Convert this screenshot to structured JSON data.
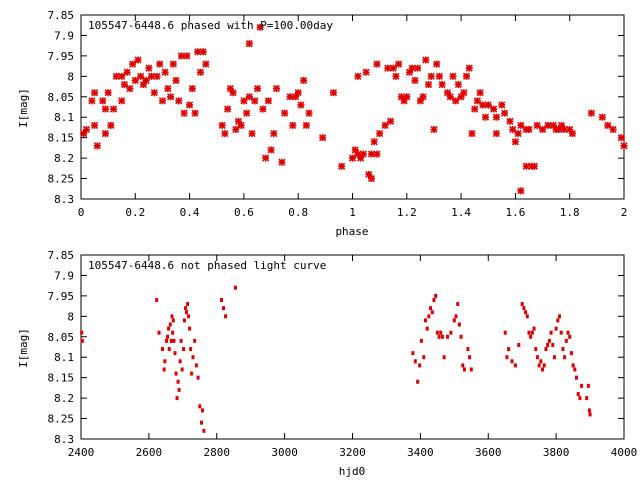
{
  "chart_data": [
    {
      "type": "scatter",
      "title": "105547-6448.6 phased with P=100.00day",
      "xlabel": "phase",
      "ylabel": "I[mag]",
      "xlim": [
        0,
        2
      ],
      "ylim": [
        7.85,
        8.3
      ],
      "y_inverted": true,
      "x_ticks": [
        "0",
        "0.2",
        "0.4",
        "0.6",
        "0.8",
        "1",
        "1.2",
        "1.4",
        "1.6",
        "1.8",
        "2"
      ],
      "y_ticks": [
        "7.85",
        "7.9",
        "7.95",
        "8",
        "8.05",
        "8.1",
        "8.15",
        "8.2",
        "8.25",
        "8.3"
      ],
      "marker_color": "#e00000",
      "marker": "large-cross",
      "points": [
        [
          0.01,
          8.14
        ],
        [
          0.02,
          8.13
        ],
        [
          0.04,
          8.06
        ],
        [
          0.05,
          8.12
        ],
        [
          0.05,
          8.04
        ],
        [
          0.06,
          8.17
        ],
        [
          0.08,
          8.06
        ],
        [
          0.09,
          8.08
        ],
        [
          0.09,
          8.14
        ],
        [
          0.1,
          8.04
        ],
        [
          0.11,
          8.12
        ],
        [
          0.12,
          8.08
        ],
        [
          0.13,
          8.0
        ],
        [
          0.15,
          8.0
        ],
        [
          0.15,
          8.06
        ],
        [
          0.16,
          8.02
        ],
        [
          0.17,
          7.99
        ],
        [
          0.18,
          8.03
        ],
        [
          0.19,
          7.97
        ],
        [
          0.2,
          8.01
        ],
        [
          0.21,
          7.96
        ],
        [
          0.22,
          8.0
        ],
        [
          0.23,
          8.02
        ],
        [
          0.24,
          8.01
        ],
        [
          0.25,
          7.98
        ],
        [
          0.26,
          8.0
        ],
        [
          0.27,
          8.04
        ],
        [
          0.28,
          8.0
        ],
        [
          0.29,
          7.97
        ],
        [
          0.3,
          8.06
        ],
        [
          0.31,
          7.99
        ],
        [
          0.32,
          8.03
        ],
        [
          0.33,
          8.05
        ],
        [
          0.34,
          7.97
        ],
        [
          0.35,
          8.01
        ],
        [
          0.36,
          8.06
        ],
        [
          0.37,
          7.95
        ],
        [
          0.38,
          8.09
        ],
        [
          0.39,
          7.95
        ],
        [
          0.4,
          8.07
        ],
        [
          0.41,
          8.03
        ],
        [
          0.42,
          8.09
        ],
        [
          0.43,
          7.94
        ],
        [
          0.44,
          7.99
        ],
        [
          0.45,
          7.94
        ],
        [
          0.46,
          7.97
        ],
        [
          0.52,
          8.12
        ],
        [
          0.53,
          8.14
        ],
        [
          0.54,
          8.08
        ],
        [
          0.55,
          8.03
        ],
        [
          0.56,
          8.04
        ],
        [
          0.57,
          8.13
        ],
        [
          0.58,
          8.11
        ],
        [
          0.59,
          8.12
        ],
        [
          0.6,
          8.06
        ],
        [
          0.61,
          8.09
        ],
        [
          0.62,
          7.92
        ],
        [
          0.62,
          8.05
        ],
        [
          0.63,
          8.14
        ],
        [
          0.64,
          8.06
        ],
        [
          0.65,
          8.03
        ],
        [
          0.66,
          7.88
        ],
        [
          0.67,
          8.08
        ],
        [
          0.68,
          8.2
        ],
        [
          0.69,
          8.06
        ],
        [
          0.7,
          8.18
        ],
        [
          0.71,
          8.14
        ],
        [
          0.72,
          8.03
        ],
        [
          0.74,
          8.21
        ],
        [
          0.75,
          8.09
        ],
        [
          0.77,
          8.05
        ],
        [
          0.78,
          8.12
        ],
        [
          0.79,
          8.05
        ],
        [
          0.8,
          8.04
        ],
        [
          0.81,
          8.07
        ],
        [
          0.82,
          8.01
        ],
        [
          0.83,
          8.12
        ],
        [
          0.84,
          8.09
        ],
        [
          0.89,
          8.15
        ],
        [
          0.93,
          8.04
        ],
        [
          0.96,
          8.22
        ],
        [
          1.0,
          8.2
        ],
        [
          1.01,
          8.18
        ],
        [
          1.02,
          8.19
        ],
        [
          1.02,
          8.0
        ],
        [
          1.03,
          8.2
        ],
        [
          1.04,
          8.19
        ],
        [
          1.05,
          7.99
        ],
        [
          1.06,
          8.24
        ],
        [
          1.07,
          8.19
        ],
        [
          1.07,
          8.25
        ],
        [
          1.08,
          8.16
        ],
        [
          1.09,
          8.19
        ],
        [
          1.09,
          7.97
        ],
        [
          1.1,
          8.14
        ],
        [
          1.12,
          8.12
        ],
        [
          1.13,
          7.98
        ],
        [
          1.14,
          8.11
        ],
        [
          1.15,
          7.98
        ],
        [
          1.16,
          8.0
        ],
        [
          1.17,
          7.97
        ],
        [
          1.18,
          8.05
        ],
        [
          1.19,
          8.06
        ],
        [
          1.2,
          8.05
        ],
        [
          1.21,
          7.99
        ],
        [
          1.22,
          7.98
        ],
        [
          1.23,
          8.01
        ],
        [
          1.24,
          7.98
        ],
        [
          1.25,
          8.06
        ],
        [
          1.26,
          8.05
        ],
        [
          1.27,
          7.96
        ],
        [
          1.28,
          8.02
        ],
        [
          1.29,
          8.0
        ],
        [
          1.3,
          8.13
        ],
        [
          1.31,
          7.97
        ],
        [
          1.32,
          8.0
        ],
        [
          1.33,
          8.02
        ],
        [
          1.35,
          8.04
        ],
        [
          1.36,
          8.05
        ],
        [
          1.37,
          8.0
        ],
        [
          1.38,
          8.06
        ],
        [
          1.39,
          8.02
        ],
        [
          1.4,
          8.05
        ],
        [
          1.41,
          8.04
        ],
        [
          1.42,
          8.0
        ],
        [
          1.43,
          7.98
        ],
        [
          1.44,
          8.14
        ],
        [
          1.45,
          8.08
        ],
        [
          1.46,
          8.06
        ],
        [
          1.47,
          8.04
        ],
        [
          1.48,
          8.07
        ],
        [
          1.49,
          8.1
        ],
        [
          1.5,
          8.07
        ],
        [
          1.52,
          8.08
        ],
        [
          1.53,
          8.1
        ],
        [
          1.53,
          8.14
        ],
        [
          1.55,
          8.07
        ],
        [
          1.56,
          8.09
        ],
        [
          1.58,
          8.11
        ],
        [
          1.59,
          8.13
        ],
        [
          1.6,
          8.16
        ],
        [
          1.61,
          8.14
        ],
        [
          1.62,
          8.12
        ],
        [
          1.62,
          8.28
        ],
        [
          1.64,
          8.13
        ],
        [
          1.64,
          8.22
        ],
        [
          1.65,
          8.13
        ],
        [
          1.66,
          8.22
        ],
        [
          1.67,
          8.22
        ],
        [
          1.68,
          8.12
        ],
        [
          1.7,
          8.13
        ],
        [
          1.72,
          8.12
        ],
        [
          1.74,
          8.12
        ],
        [
          1.75,
          8.13
        ],
        [
          1.76,
          8.13
        ],
        [
          1.77,
          8.12
        ],
        [
          1.78,
          8.13
        ],
        [
          1.8,
          8.13
        ],
        [
          1.81,
          8.14
        ],
        [
          1.88,
          8.09
        ],
        [
          1.92,
          8.1
        ],
        [
          1.94,
          8.12
        ],
        [
          1.96,
          8.13
        ],
        [
          1.99,
          8.15
        ],
        [
          2.0,
          8.17
        ]
      ]
    },
    {
      "type": "scatter",
      "title": "105547-6448.6 not phased light curve",
      "xlabel": "hjd0",
      "ylabel": "I[mag]",
      "xlim": [
        2400,
        4000
      ],
      "ylim": [
        7.85,
        8.3
      ],
      "y_inverted": true,
      "x_ticks": [
        "2400",
        "2600",
        "2800",
        "3000",
        "3200",
        "3400",
        "3600",
        "3800",
        "4000"
      ],
      "y_ticks": [
        "7.85",
        "7.9",
        "7.95",
        "8",
        "8.05",
        "8.1",
        "8.15",
        "8.2",
        "8.25",
        "8.3"
      ],
      "marker_color": "#e00000",
      "marker": "small-dot",
      "points": [
        [
          2402,
          8.04
        ],
        [
          2404,
          8.06
        ],
        [
          2623,
          7.96
        ],
        [
          2630,
          8.04
        ],
        [
          2640,
          8.08
        ],
        [
          2645,
          8.13
        ],
        [
          2647,
          8.11
        ],
        [
          2652,
          8.06
        ],
        [
          2655,
          8.05
        ],
        [
          2658,
          8.03
        ],
        [
          2660,
          8.08
        ],
        [
          2663,
          8.02
        ],
        [
          2666,
          8.06
        ],
        [
          2668,
          8.0
        ],
        [
          2670,
          8.04
        ],
        [
          2672,
          8.01
        ],
        [
          2674,
          8.06
        ],
        [
          2677,
          8.09
        ],
        [
          2680,
          8.14
        ],
        [
          2683,
          8.2
        ],
        [
          2686,
          8.16
        ],
        [
          2689,
          8.18
        ],
        [
          2692,
          8.11
        ],
        [
          2695,
          8.06
        ],
        [
          2698,
          8.13
        ],
        [
          2702,
          8.08
        ],
        [
          2705,
          8.01
        ],
        [
          2708,
          7.98
        ],
        [
          2711,
          7.99
        ],
        [
          2714,
          7.97
        ],
        [
          2717,
          8.0
        ],
        [
          2720,
          8.03
        ],
        [
          2723,
          8.08
        ],
        [
          2726,
          8.14
        ],
        [
          2730,
          8.1
        ],
        [
          2735,
          8.06
        ],
        [
          2740,
          8.12
        ],
        [
          2745,
          8.15
        ],
        [
          2750,
          8.22
        ],
        [
          2755,
          8.26
        ],
        [
          2758,
          8.23
        ],
        [
          2762,
          8.28
        ],
        [
          2814,
          7.96
        ],
        [
          2820,
          7.98
        ],
        [
          2826,
          8.0
        ],
        [
          2855,
          7.93
        ],
        [
          3378,
          8.09
        ],
        [
          3385,
          8.11
        ],
        [
          3392,
          8.16
        ],
        [
          3398,
          8.12
        ],
        [
          3403,
          8.06
        ],
        [
          3410,
          8.1
        ],
        [
          3415,
          8.01
        ],
        [
          3420,
          8.03
        ],
        [
          3425,
          8.0
        ],
        [
          3430,
          7.98
        ],
        [
          3435,
          7.99
        ],
        [
          3440,
          7.96
        ],
        [
          3445,
          7.95
        ],
        [
          3450,
          8.04
        ],
        [
          3455,
          8.05
        ],
        [
          3460,
          8.04
        ],
        [
          3465,
          8.05
        ],
        [
          3470,
          8.1
        ],
        [
          3480,
          8.05
        ],
        [
          3490,
          8.04
        ],
        [
          3500,
          8.01
        ],
        [
          3505,
          8.0
        ],
        [
          3510,
          7.97
        ],
        [
          3515,
          8.02
        ],
        [
          3520,
          8.05
        ],
        [
          3525,
          8.12
        ],
        [
          3530,
          8.13
        ],
        [
          3540,
          8.08
        ],
        [
          3545,
          8.1
        ],
        [
          3550,
          8.13
        ],
        [
          3650,
          8.04
        ],
        [
          3655,
          8.1
        ],
        [
          3660,
          8.08
        ],
        [
          3670,
          8.11
        ],
        [
          3680,
          8.12
        ],
        [
          3690,
          8.07
        ],
        [
          3700,
          7.97
        ],
        [
          3705,
          7.98
        ],
        [
          3710,
          7.99
        ],
        [
          3715,
          8.0
        ],
        [
          3720,
          8.04
        ],
        [
          3725,
          8.05
        ],
        [
          3730,
          8.04
        ],
        [
          3735,
          8.03
        ],
        [
          3740,
          8.08
        ],
        [
          3745,
          8.1
        ],
        [
          3750,
          8.12
        ],
        [
          3755,
          8.11
        ],
        [
          3760,
          8.13
        ],
        [
          3765,
          8.12
        ],
        [
          3770,
          8.08
        ],
        [
          3775,
          8.07
        ],
        [
          3780,
          8.06
        ],
        [
          3785,
          8.04
        ],
        [
          3790,
          8.07
        ],
        [
          3795,
          8.1
        ],
        [
          3800,
          8.03
        ],
        [
          3805,
          8.01
        ],
        [
          3810,
          8.0
        ],
        [
          3815,
          8.04
        ],
        [
          3820,
          8.08
        ],
        [
          3825,
          8.1
        ],
        [
          3830,
          8.06
        ],
        [
          3835,
          8.04
        ],
        [
          3840,
          8.05
        ],
        [
          3845,
          8.09
        ],
        [
          3850,
          8.12
        ],
        [
          3855,
          8.13
        ],
        [
          3860,
          8.15
        ],
        [
          3865,
          8.19
        ],
        [
          3870,
          8.2
        ],
        [
          3875,
          8.17
        ],
        [
          3890,
          8.2
        ],
        [
          3895,
          8.17
        ],
        [
          3898,
          8.23
        ],
        [
          3900,
          8.24
        ]
      ]
    }
  ]
}
